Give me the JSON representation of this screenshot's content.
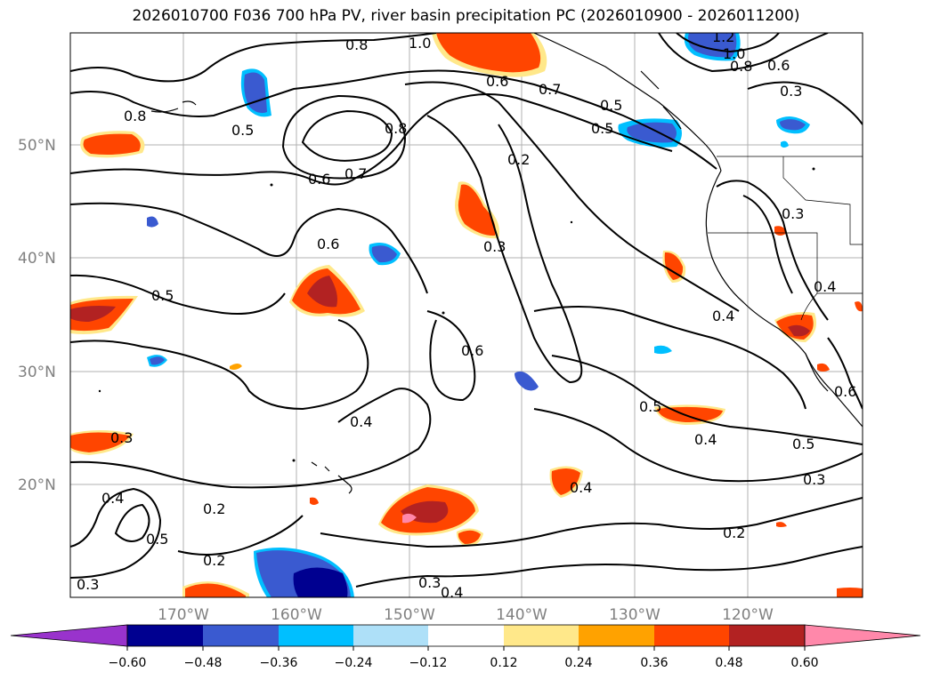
{
  "title": "2026010700 F036 700 hPa PV, river basin precipitation PC (2026010900 - 2026011200)",
  "map": {
    "lat_labels": [
      "50°N",
      "40°N",
      "30°N",
      "20°N"
    ],
    "lon_labels": [
      "170°W",
      "160°W",
      "150°W",
      "140°W",
      "130°W",
      "120°W"
    ],
    "grid": true
  },
  "contour_labels": [
    {
      "text": "0.8",
      "id": "a"
    },
    {
      "text": "1.0",
      "id": "b"
    },
    {
      "text": "0.6",
      "id": "c"
    },
    {
      "text": "0.7",
      "id": "d"
    },
    {
      "text": "0.5",
      "id": "e"
    },
    {
      "text": "1.2",
      "id": "f"
    },
    {
      "text": "1.0",
      "id": "g"
    },
    {
      "text": "0.8",
      "id": "h"
    },
    {
      "text": "0.6",
      "id": "i"
    },
    {
      "text": "0.3",
      "id": "j"
    },
    {
      "text": "0.8",
      "id": "k"
    },
    {
      "text": "0.5",
      "id": "l"
    },
    {
      "text": "0.8",
      "id": "m"
    },
    {
      "text": "0.6",
      "id": "n"
    },
    {
      "text": "0.7",
      "id": "o"
    },
    {
      "text": "0.2",
      "id": "p"
    },
    {
      "text": "0.3",
      "id": "q"
    },
    {
      "text": "0.6",
      "id": "r"
    },
    {
      "text": "0.3",
      "id": "s"
    },
    {
      "text": "0.5",
      "id": "t"
    },
    {
      "text": "0.4",
      "id": "u"
    },
    {
      "text": "0.4",
      "id": "v"
    },
    {
      "text": "0.6",
      "id": "w"
    },
    {
      "text": "0.4",
      "id": "x"
    },
    {
      "text": "0.5",
      "id": "y"
    },
    {
      "text": "0.4",
      "id": "z"
    },
    {
      "text": "0.5",
      "id": "aa"
    },
    {
      "text": "0.3",
      "id": "ab"
    },
    {
      "text": "0.4",
      "id": "ac"
    },
    {
      "text": "0.4",
      "id": "ad"
    },
    {
      "text": "0.2",
      "id": "ae"
    },
    {
      "text": "0.5",
      "id": "af"
    },
    {
      "text": "0.2",
      "id": "ag"
    },
    {
      "text": "0.3",
      "id": "ah"
    },
    {
      "text": "0.3",
      "id": "ai"
    },
    {
      "text": "0.4",
      "id": "aj"
    },
    {
      "text": "0.2",
      "id": "ak"
    },
    {
      "text": "0.3",
      "id": "al"
    },
    {
      "text": "0.6",
      "id": "am"
    },
    {
      "text": "0.5",
      "id": "an"
    }
  ],
  "colorbar": {
    "ticks": [
      "−0.60",
      "−0.48",
      "−0.36",
      "−0.24",
      "−0.12",
      "0.12",
      "0.24",
      "0.36",
      "0.48",
      "0.60"
    ],
    "colors": {
      "under": "#9933cc",
      "neg_060": "#000090",
      "neg_048": "#3a5ad0",
      "neg_036": "#00bfff",
      "neg_024": "#aee0f8",
      "zero": "#ffffff",
      "pos_012": "#ffe88a",
      "pos_024": "#ffa200",
      "pos_036": "#ff4500",
      "pos_048": "#b22222",
      "over": "#ff88aa"
    }
  }
}
